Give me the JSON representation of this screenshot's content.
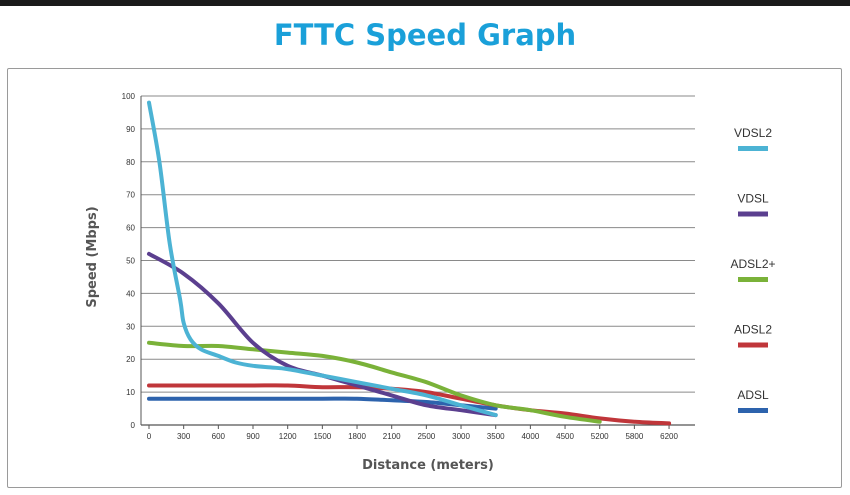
{
  "chart_data": {
    "type": "line",
    "title": "FTTC Speed Graph",
    "xlabel": "Distance (meters)",
    "ylabel": "Speed (Mbps)",
    "x_ticks": [
      "0",
      "300",
      "600",
      "900",
      "1200",
      "1500",
      "1800",
      "2100",
      "2500",
      "3000",
      "3500",
      "4000",
      "4500",
      "5200",
      "5800",
      "6200"
    ],
    "y_ticks": [
      0,
      10,
      20,
      30,
      40,
      50,
      60,
      70,
      80,
      90,
      100
    ],
    "ylim": [
      0,
      100
    ],
    "grid": "horizontal",
    "legend_position": "right",
    "series": [
      {
        "name": "VDSL2",
        "color": "#4cb3d4",
        "points": [
          [
            0,
            98
          ],
          [
            90,
            80
          ],
          [
            180,
            55
          ],
          [
            270,
            38
          ],
          [
            300,
            31
          ],
          [
            360,
            26
          ],
          [
            450,
            23
          ],
          [
            600,
            21
          ],
          [
            750,
            19
          ],
          [
            900,
            18
          ],
          [
            1050,
            17.5
          ],
          [
            1200,
            17
          ],
          [
            1500,
            15
          ],
          [
            1800,
            13
          ],
          [
            2100,
            11
          ],
          [
            2500,
            9
          ],
          [
            3000,
            6
          ],
          [
            3500,
            3
          ]
        ]
      },
      {
        "name": "VDSL",
        "color": "#5b3f8f",
        "points": [
          [
            0,
            52
          ],
          [
            300,
            46
          ],
          [
            600,
            37
          ],
          [
            900,
            25
          ],
          [
            1200,
            18
          ],
          [
            1500,
            15
          ],
          [
            1800,
            12
          ],
          [
            2100,
            9
          ],
          [
            2500,
            6
          ],
          [
            3000,
            4.5
          ],
          [
            3500,
            3
          ]
        ]
      },
      {
        "name": "ADSL2+",
        "color": "#7ab239",
        "points": [
          [
            0,
            25
          ],
          [
            300,
            24
          ],
          [
            600,
            24
          ],
          [
            900,
            23
          ],
          [
            1200,
            22
          ],
          [
            1500,
            21
          ],
          [
            1800,
            19
          ],
          [
            2100,
            16
          ],
          [
            2500,
            13
          ],
          [
            3000,
            9
          ],
          [
            3500,
            6
          ],
          [
            4000,
            4.5
          ],
          [
            4500,
            2.5
          ],
          [
            5200,
            1
          ]
        ]
      },
      {
        "name": "ADSL2",
        "color": "#c0363a",
        "points": [
          [
            0,
            12
          ],
          [
            300,
            12
          ],
          [
            600,
            12
          ],
          [
            900,
            12
          ],
          [
            1200,
            12
          ],
          [
            1500,
            11.5
          ],
          [
            1800,
            11.5
          ],
          [
            2100,
            11
          ],
          [
            2500,
            10
          ],
          [
            3000,
            8
          ],
          [
            3500,
            6
          ],
          [
            4000,
            4.5
          ],
          [
            4500,
            3.5
          ],
          [
            5200,
            2
          ],
          [
            5800,
            1
          ],
          [
            6200,
            0.5
          ]
        ]
      },
      {
        "name": "ADSL",
        "color": "#2d63ad",
        "points": [
          [
            0,
            8
          ],
          [
            300,
            8
          ],
          [
            600,
            8
          ],
          [
            900,
            8
          ],
          [
            1200,
            8
          ],
          [
            1500,
            8
          ],
          [
            1800,
            8
          ],
          [
            2100,
            7.5
          ],
          [
            2500,
            7
          ],
          [
            3000,
            6
          ],
          [
            3500,
            5
          ]
        ]
      }
    ]
  }
}
